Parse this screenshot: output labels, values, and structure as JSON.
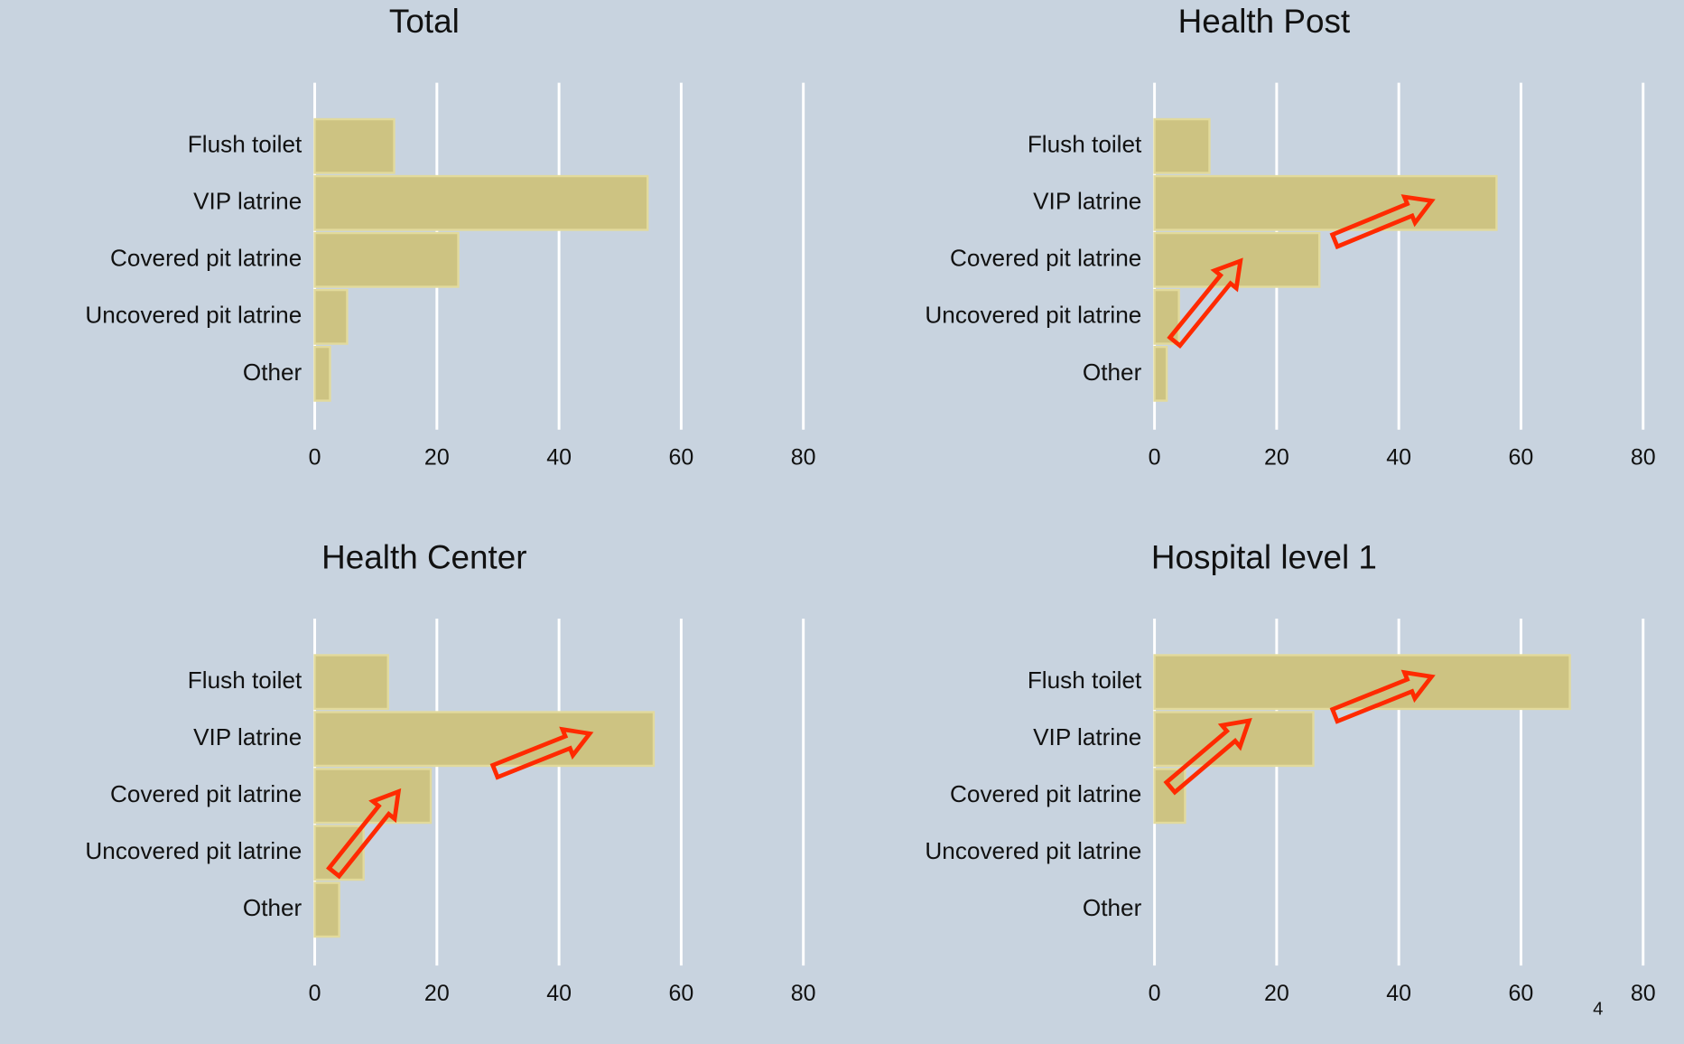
{
  "chart_data": [
    {
      "type": "bar",
      "orientation": "horizontal",
      "title": "Total",
      "categories": [
        "Flush toilet",
        "VIP latrine",
        "Covered pit latrine",
        "Uncovered pit latrine",
        "Other"
      ],
      "values": [
        13,
        54.5,
        23.5,
        5.3,
        2.5
      ],
      "color": "#cdc382",
      "xlim": [
        0,
        80
      ],
      "xticks": [
        0,
        20,
        40,
        60,
        80
      ],
      "grid": true
    },
    {
      "type": "bar",
      "orientation": "horizontal",
      "title": "Health Post",
      "categories": [
        "Flush toilet",
        "VIP latrine",
        "Covered pit latrine",
        "Uncovered pit latrine",
        "Other"
      ],
      "values": [
        9,
        56,
        27,
        4,
        2
      ],
      "color": "#cdc382",
      "xlim": [
        0,
        80
      ],
      "xticks": [
        0,
        20,
        40,
        60,
        80
      ],
      "grid": true
    },
    {
      "type": "bar",
      "orientation": "horizontal",
      "title": "Health Center",
      "categories": [
        "Flush toilet",
        "VIP latrine",
        "Covered pit latrine",
        "Uncovered pit latrine",
        "Other"
      ],
      "values": [
        12,
        55.5,
        19,
        8,
        4
      ],
      "color": "#cdc382",
      "xlim": [
        0,
        80
      ],
      "xticks": [
        0,
        20,
        40,
        60,
        80
      ],
      "grid": true
    },
    {
      "type": "bar",
      "orientation": "horizontal",
      "title": "Hospital level 1",
      "categories": [
        "Flush toilet",
        "VIP latrine",
        "Covered pit latrine",
        "Uncovered pit latrine",
        "Other"
      ],
      "values": [
        68,
        26,
        5,
        0,
        0
      ],
      "color": "#cdc382",
      "xlim": [
        0,
        80
      ],
      "xticks": [
        0,
        20,
        40,
        60,
        80
      ],
      "grid": true
    }
  ],
  "page_number": "4"
}
